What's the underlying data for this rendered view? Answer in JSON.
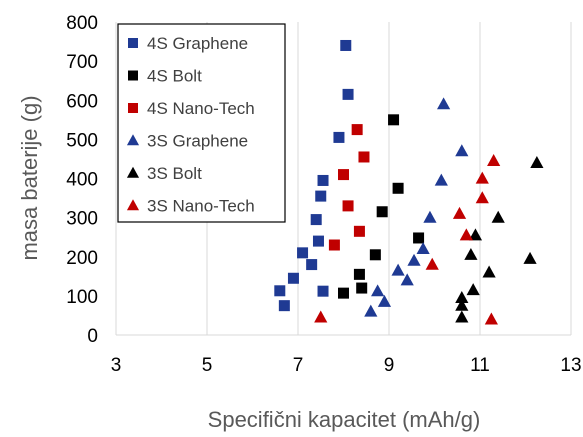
{
  "chart_data": {
    "type": "scatter",
    "xlabel": "Specifični kapacitet (mAh/g)",
    "ylabel": "masa baterije (g)",
    "xlim": [
      3,
      13
    ],
    "ylim": [
      0,
      800
    ],
    "xticks": [
      3,
      5,
      7,
      9,
      11,
      13
    ],
    "yticks": [
      0,
      100,
      200,
      300,
      400,
      500,
      600,
      700,
      800
    ],
    "grid": "vertical",
    "legend_position": "top-left",
    "series": [
      {
        "name": "4S Graphene",
        "marker": "square",
        "color": "#1f3a93",
        "points": [
          [
            6.6,
            113
          ],
          [
            6.7,
            75
          ],
          [
            6.9,
            145
          ],
          [
            7.1,
            210
          ],
          [
            7.3,
            180
          ],
          [
            7.4,
            295
          ],
          [
            7.45,
            240
          ],
          [
            7.5,
            355
          ],
          [
            7.55,
            395
          ],
          [
            7.55,
            112
          ],
          [
            7.9,
            505
          ],
          [
            8.05,
            740
          ],
          [
            8.1,
            615
          ]
        ]
      },
      {
        "name": "4S Bolt",
        "marker": "square",
        "color": "#000000",
        "points": [
          [
            8.0,
            107
          ],
          [
            8.35,
            155
          ],
          [
            8.4,
            120
          ],
          [
            8.7,
            205
          ],
          [
            8.85,
            315
          ],
          [
            9.1,
            550
          ],
          [
            9.2,
            375
          ],
          [
            9.65,
            248
          ]
        ]
      },
      {
        "name": "4S Nano-Tech",
        "marker": "square",
        "color": "#c00000",
        "points": [
          [
            7.8,
            230
          ],
          [
            8.0,
            410
          ],
          [
            8.1,
            330
          ],
          [
            8.3,
            525
          ],
          [
            8.35,
            265
          ],
          [
            8.45,
            455
          ]
        ]
      },
      {
        "name": "3S Graphene",
        "marker": "triangle",
        "color": "#1f3a93",
        "points": [
          [
            8.6,
            60
          ],
          [
            8.75,
            112
          ],
          [
            8.9,
            85
          ],
          [
            9.2,
            165
          ],
          [
            9.4,
            140
          ],
          [
            9.55,
            190
          ],
          [
            9.75,
            220
          ],
          [
            9.9,
            300
          ],
          [
            10.15,
            395
          ],
          [
            10.2,
            590
          ],
          [
            10.6,
            470
          ]
        ]
      },
      {
        "name": "3S Bolt",
        "marker": "triangle",
        "color": "#000000",
        "points": [
          [
            10.6,
            45
          ],
          [
            10.6,
            75
          ],
          [
            10.6,
            95
          ],
          [
            10.85,
            115
          ],
          [
            10.8,
            205
          ],
          [
            10.9,
            255
          ],
          [
            11.2,
            160
          ],
          [
            11.4,
            300
          ],
          [
            12.1,
            195
          ],
          [
            12.25,
            440
          ]
        ]
      },
      {
        "name": "3S Nano-Tech",
        "marker": "triangle",
        "color": "#c00000",
        "points": [
          [
            7.5,
            45
          ],
          [
            9.95,
            180
          ],
          [
            10.55,
            310
          ],
          [
            10.7,
            255
          ],
          [
            11.05,
            400
          ],
          [
            11.05,
            350
          ],
          [
            11.25,
            40
          ],
          [
            11.3,
            445
          ]
        ]
      }
    ]
  }
}
